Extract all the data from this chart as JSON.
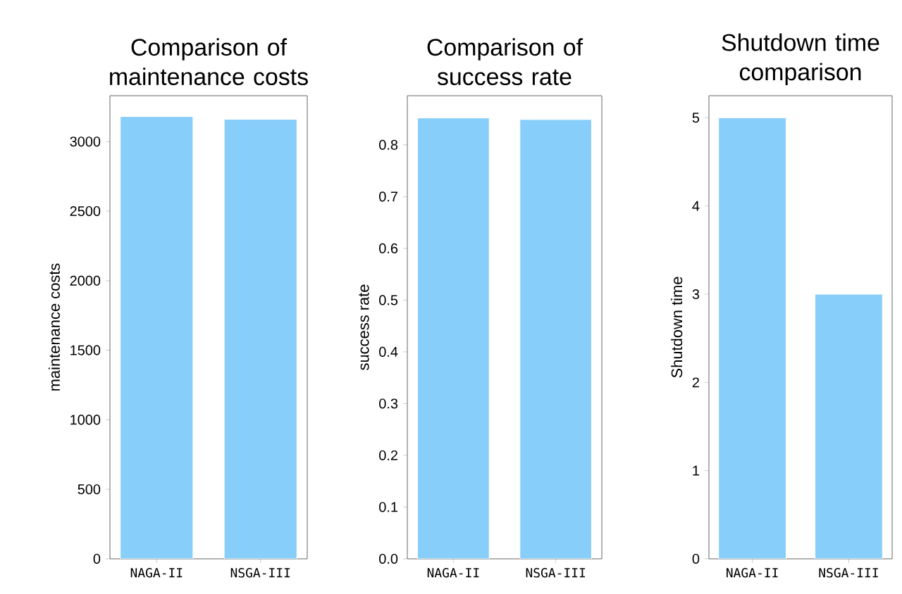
{
  "chart_data": [
    {
      "type": "bar",
      "title": "Comparison of maintenance costs",
      "ylabel": "maintenance costs",
      "categories": [
        "NAGA-II",
        "NSGA-III"
      ],
      "values": [
        3180,
        3160
      ],
      "color": "#87cefa",
      "ylim": [
        0,
        3330
      ],
      "yticks": [
        0,
        500,
        1000,
        1500,
        2000,
        2500,
        3000
      ]
    },
    {
      "type": "bar",
      "title": "Comparison of success rate",
      "ylabel": "success rate",
      "categories": [
        "NAGA-II",
        "NSGA-III"
      ],
      "values": [
        0.852,
        0.849
      ],
      "color": "#87cefa",
      "ylim": [
        0,
        0.895
      ],
      "yticks": [
        {
          "value": 0,
          "label": "0.0"
        },
        0.1,
        0.2,
        0.3,
        0.4,
        0.5,
        0.6,
        0.7,
        0.8
      ]
    },
    {
      "type": "bar",
      "title": "Shutdown time comparison",
      "ylabel": "Shutdown time",
      "categories": [
        "NAGA-II",
        "NSGA-III"
      ],
      "values": [
        5,
        3
      ],
      "color": "#87cefa",
      "ylim": [
        0,
        5.25
      ],
      "yticks": [
        0,
        1,
        2,
        3,
        4,
        5
      ]
    }
  ]
}
